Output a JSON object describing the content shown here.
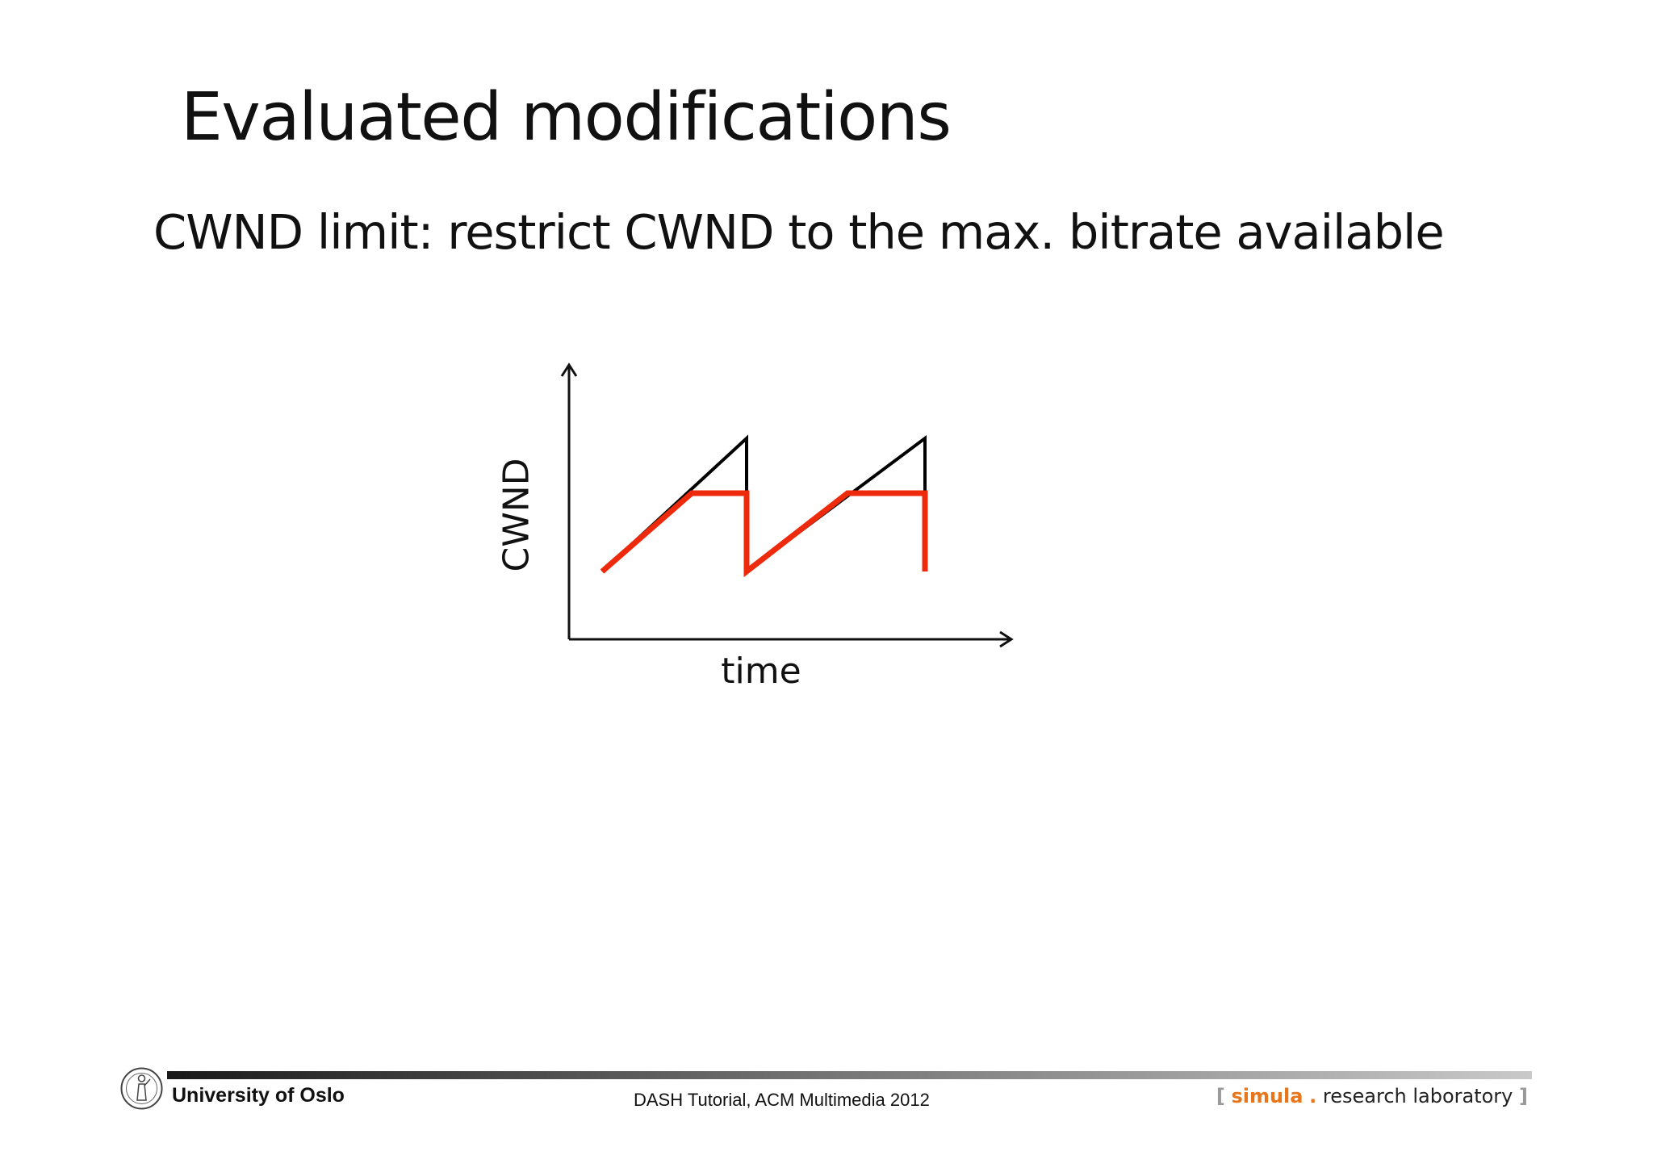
{
  "slide": {
    "title": "Evaluated modifications",
    "subtitle": "CWND limit: restrict CWND to the max. bitrate available"
  },
  "diagram": {
    "ylabel": "CWND",
    "xlabel": "time",
    "series": [
      {
        "id": "unlimited",
        "color": "#000000"
      },
      {
        "id": "limited",
        "color": "#ee2a0c"
      }
    ]
  },
  "footer": {
    "university": "University of Oslo",
    "event": "DASH Tutorial, ACM Multimedia 2012",
    "logo_open": "[",
    "logo_brand": "simula",
    "logo_dot": ".",
    "logo_rest": "research laboratory",
    "logo_close": "]",
    "accent_color": "#e8751a"
  }
}
